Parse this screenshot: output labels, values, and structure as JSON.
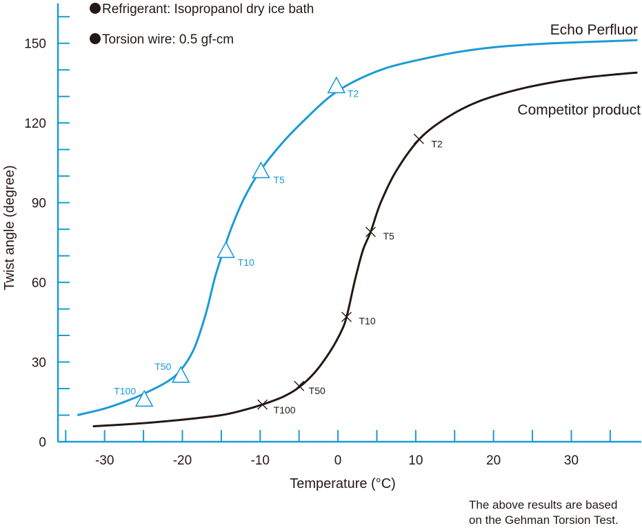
{
  "notes": [
    "Refrigerant: Isopropanol dry ice bath",
    "Torsion wire: 0.5 gf-cm"
  ],
  "footnote": [
    "The above results are based",
    "on the Gehman Torsion Test."
  ],
  "colors": {
    "axis": "#1a9ad7",
    "echo": "#1a9ad7",
    "competitor": "#231815",
    "text": "#231815"
  },
  "chart_data": {
    "type": "line",
    "title": "",
    "xlabel": "Temperature (°C)",
    "ylabel": "Twist angle (degree)",
    "xlim": [
      -36,
      39
    ],
    "ylim": [
      0,
      165
    ],
    "x_ticks": [
      -30,
      -20,
      -10,
      0,
      10,
      20,
      30
    ],
    "y_ticks": [
      0,
      30,
      60,
      90,
      120,
      150
    ],
    "grid": false,
    "series": [
      {
        "name": "Echo Perfluor",
        "marker": "triangle",
        "x": [
          -33.5,
          -30,
          -27,
          -25,
          -22,
          -20.2,
          -18.5,
          -17,
          -15.8,
          -14.6,
          -13.5,
          -12,
          -10,
          -7,
          -4,
          -1,
          2,
          6,
          10,
          15,
          20,
          25,
          30,
          35,
          38.5
        ],
        "y": [
          10,
          12.5,
          15.5,
          18,
          22.5,
          27,
          35,
          48,
          62,
          73,
          82,
          92,
          102,
          113,
          122,
          130,
          135.5,
          140.5,
          143.5,
          146.5,
          148.5,
          149.6,
          150.3,
          150.8,
          151.2
        ],
        "points": [
          {
            "label": "T2",
            "x": -0.2,
            "y": 134
          },
          {
            "label": "T5",
            "x": -9.9,
            "y": 102
          },
          {
            "label": "T10",
            "x": -14.4,
            "y": 72
          },
          {
            "label": "T50",
            "x": -20.2,
            "y": 25
          },
          {
            "label": "T100",
            "x": -24.9,
            "y": 16
          }
        ]
      },
      {
        "name": "Competitor product",
        "marker": "x",
        "x": [
          -31.5,
          -25,
          -20,
          -15,
          -12,
          -9.7,
          -7,
          -5,
          -3,
          -1,
          0.5,
          1.2,
          2.2,
          3.2,
          4.2,
          5.5,
          7.5,
          10.5,
          14,
          18,
          23,
          28,
          33,
          38.5
        ],
        "y": [
          5.8,
          7,
          8.3,
          10,
          12,
          14,
          17,
          20.5,
          26,
          34,
          42,
          48,
          61,
          72,
          79,
          90,
          102,
          114,
          122,
          128,
          132.5,
          135.5,
          137.5,
          139
        ],
        "points": [
          {
            "label": "T2",
            "x": 10.4,
            "y": 114
          },
          {
            "label": "T5",
            "x": 4.2,
            "y": 79
          },
          {
            "label": "T10",
            "x": 1.1,
            "y": 47
          },
          {
            "label": "T50",
            "x": -5,
            "y": 21
          },
          {
            "label": "T100",
            "x": -9.7,
            "y": 14
          }
        ]
      }
    ]
  }
}
